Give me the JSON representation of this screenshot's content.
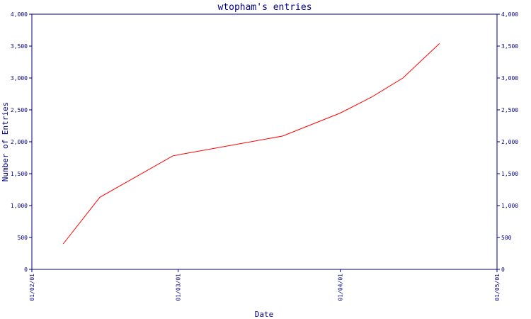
{
  "chart_data": {
    "type": "line",
    "title": "wtopham's entries",
    "xlabel": "Date",
    "ylabel": "Number of Entries",
    "x_ticks": [
      "01/02/01",
      "01/03/01",
      "01/04/01",
      "01/05/01"
    ],
    "x_tick_dates": [
      "2001-02-01",
      "2001-03-01",
      "2001-04-01",
      "2001-05-01"
    ],
    "xlim": [
      "2001-02-01",
      "2001-05-01"
    ],
    "ylim": [
      0,
      4000
    ],
    "y_ticks": [
      "0",
      "500",
      "1,000",
      "1,500",
      "2,000",
      "2,500",
      "3,000",
      "3,500",
      "4,000"
    ],
    "y_tick_values": [
      0,
      500,
      1000,
      1500,
      2000,
      2500,
      3000,
      3500,
      4000
    ],
    "grid": false,
    "series": [
      {
        "color": "#ff0000",
        "x": [
          "2001-02-07",
          "2001-02-14",
          "2001-02-28",
          "2001-03-21",
          "2001-04-01",
          "2001-04-07",
          "2001-04-13",
          "2001-04-20"
        ],
        "y": [
          400,
          1130,
          1780,
          2090,
          2450,
          2700,
          3000,
          3540
        ]
      }
    ]
  }
}
